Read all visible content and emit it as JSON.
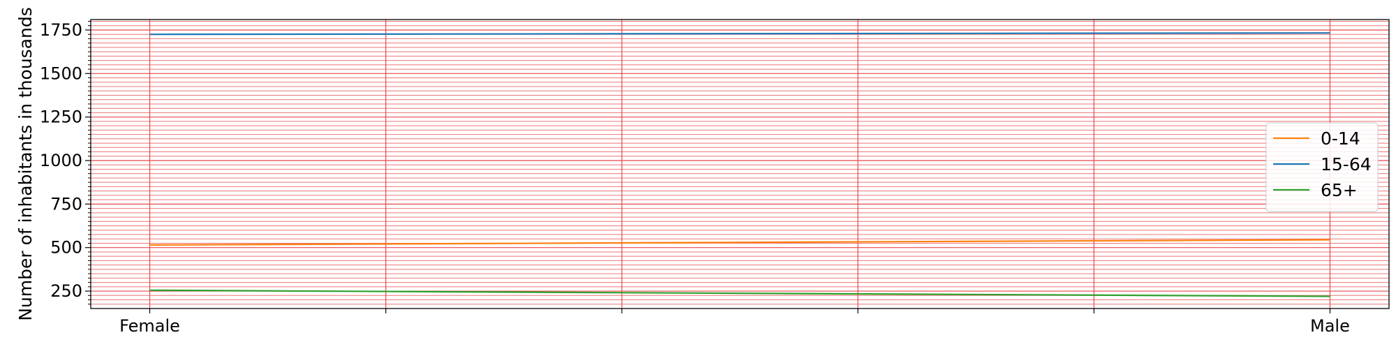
{
  "chart_data": {
    "type": "line",
    "title": "",
    "xlabel": "",
    "ylabel": "Number of inhabitants in thousands",
    "categories": [
      "Female",
      "Male"
    ],
    "x_positions": [
      0,
      5
    ],
    "ylim": [
      150,
      1810
    ],
    "y_ticks": [
      250,
      500,
      750,
      1000,
      1250,
      1500,
      1750
    ],
    "grid": true,
    "grid_color": "#e8474a",
    "legend_position": "center-right",
    "series": [
      {
        "name": "0-14",
        "color": "#ff7f0e",
        "values": [
          515,
          545
        ]
      },
      {
        "name": "15-64",
        "color": "#1f77b4",
        "values": [
          1725,
          1733
        ]
      },
      {
        "name": "65+",
        "color": "#2ca02c",
        "values": [
          255,
          220
        ]
      }
    ]
  }
}
